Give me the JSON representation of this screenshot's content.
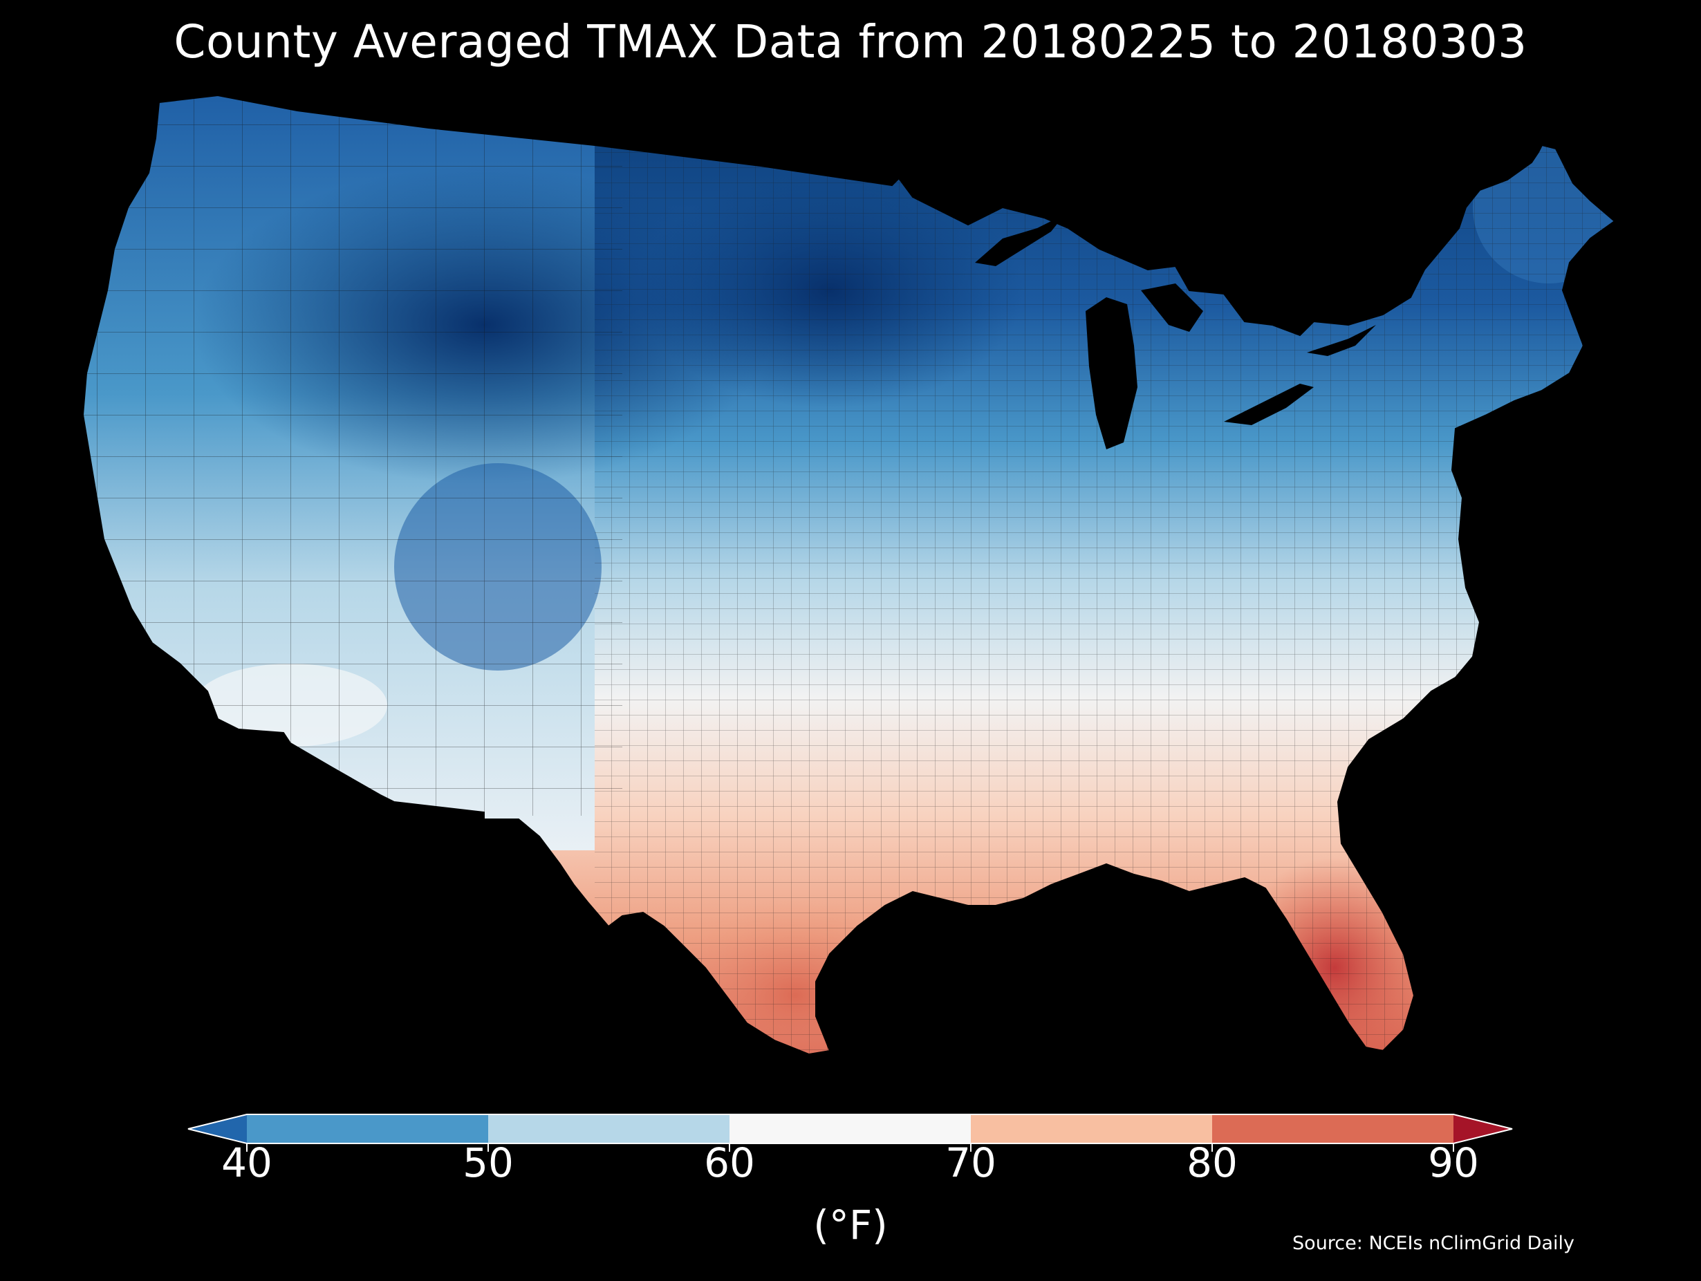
{
  "title": "County Averaged TMAX Data from 20180225 to 20180303",
  "colorbar": {
    "unit_label": "(°F)",
    "ticks": [
      "40",
      "50",
      "60",
      "70",
      "80",
      "90"
    ],
    "bins": [
      {
        "range": [
          30,
          40
        ],
        "color": "#2166ac",
        "extend": "min"
      },
      {
        "range": [
          40,
          50
        ],
        "color": "#4a98c9"
      },
      {
        "range": [
          50,
          60
        ],
        "color": "#b6d7e8"
      },
      {
        "range": [
          60,
          70
        ],
        "color": "#f7f7f7"
      },
      {
        "range": [
          70,
          80
        ],
        "color": "#f8bfa1"
      },
      {
        "range": [
          80,
          90
        ],
        "color": "#dc6b55"
      },
      {
        "range": [
          90,
          100
        ],
        "color": "#a51428",
        "extend": "max"
      }
    ]
  },
  "source": "Source: NCEIs nClimGrid Daily",
  "map": {
    "region": "Contiguous United States counties",
    "colors": {
      "very_cold": "#0c3d78",
      "cold": "#1f5fa6",
      "cool": "#4a98c9",
      "mild": "#b6d7e8",
      "neutral": "#f2f2f2",
      "warm": "#f8bfa1",
      "hot": "#dc6b55",
      "very_hot": "#c43b3b",
      "water": "#000000",
      "county_lines": "#222222"
    }
  }
}
